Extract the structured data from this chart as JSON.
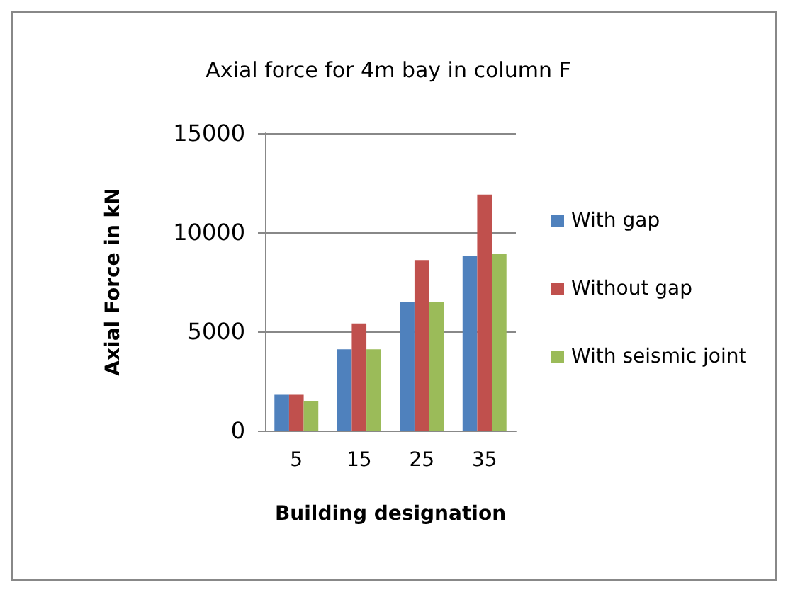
{
  "chart_data": {
    "type": "bar",
    "title": "Axial force for 4m bay in column F",
    "xlabel": "Building designation",
    "ylabel": "Axial Force in kN",
    "categories": [
      "5",
      "15",
      "25",
      "35"
    ],
    "series": [
      {
        "name": "With gap",
        "color": "#4f81bd",
        "values": [
          1800,
          4100,
          6500,
          8800
        ]
      },
      {
        "name": "Without gap",
        "color": "#c0504d",
        "values": [
          1800,
          5400,
          8600,
          11900
        ]
      },
      {
        "name": "With seismic joint",
        "color": "#9bbb59",
        "values": [
          1500,
          4100,
          6500,
          8900
        ]
      }
    ],
    "ylim": [
      0,
      15000
    ],
    "yticks": [
      0,
      5000,
      10000,
      15000
    ],
    "grid": "y",
    "legend": "right"
  }
}
